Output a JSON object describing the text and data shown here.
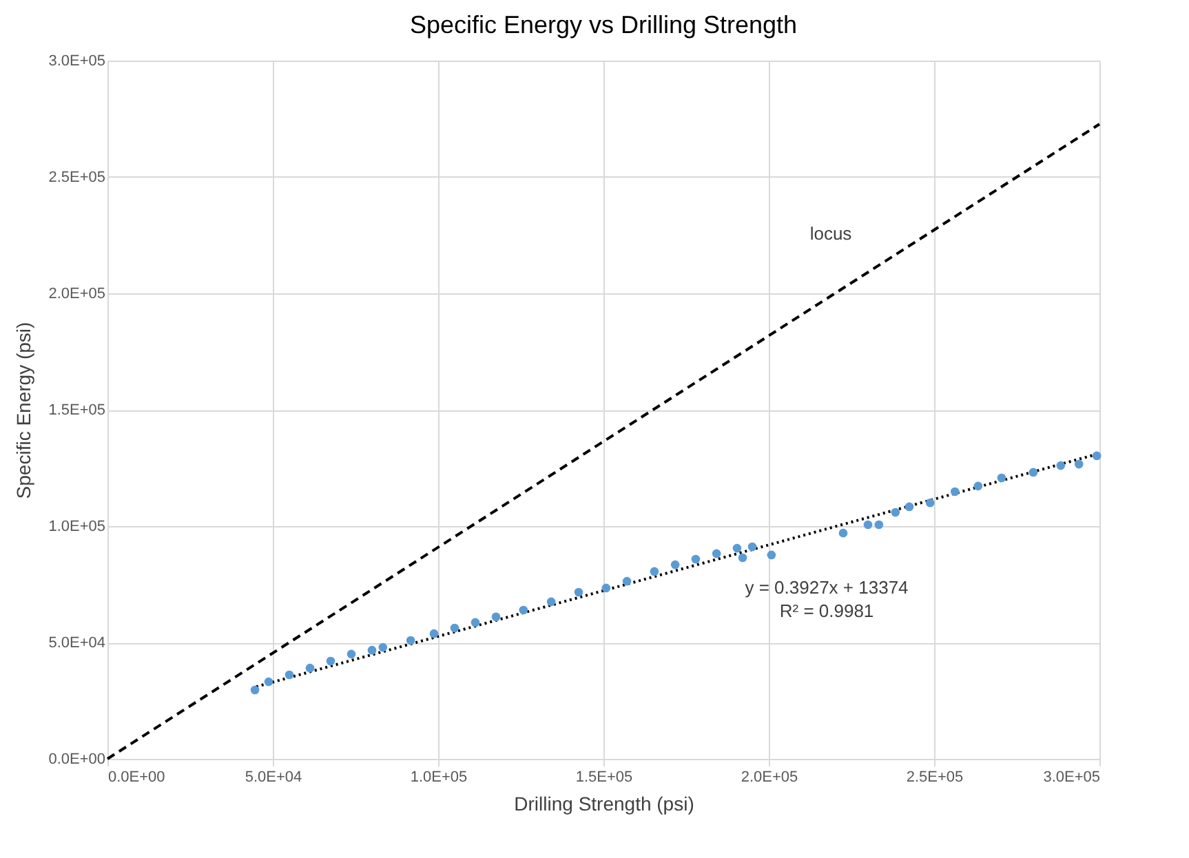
{
  "chart_data": {
    "type": "scatter",
    "title": "Specific Energy vs Drilling Strength",
    "xlabel": "Drilling Strength (psi)",
    "ylabel": "Specific Energy (psi)",
    "xlim": [
      0,
      300000
    ],
    "ylim": [
      0,
      300000
    ],
    "xticks": [
      {
        "value": 0,
        "label": "0.0E+00"
      },
      {
        "value": 50000,
        "label": "5.0E+04"
      },
      {
        "value": 100000,
        "label": "1.0E+05"
      },
      {
        "value": 150000,
        "label": "1.5E+05"
      },
      {
        "value": 200000,
        "label": "2.0E+05"
      },
      {
        "value": 250000,
        "label": "2.5E+05"
      },
      {
        "value": 300000,
        "label": "3.0E+05"
      }
    ],
    "yticks": [
      {
        "value": 0,
        "label": "0.0E+00"
      },
      {
        "value": 50000,
        "label": "5.0E+04"
      },
      {
        "value": 100000,
        "label": "1.0E+05"
      },
      {
        "value": 150000,
        "label": "1.5E+05"
      },
      {
        "value": 200000,
        "label": "2.0E+05"
      },
      {
        "value": 250000,
        "label": "2.5E+05"
      },
      {
        "value": 300000,
        "label": "3.0E+05"
      }
    ],
    "grid": true,
    "marker": "circle",
    "series": [
      {
        "type": "line",
        "marker": "none",
        "color": "#000000",
        "line_style": "dashed",
        "x": [
          0,
          300000
        ],
        "values": [
          0,
          272700
        ]
      },
      {
        "type": "line",
        "marker": "none",
        "color": "#000000",
        "line_style": "dotted",
        "x": [
          45000,
          300000
        ],
        "values": [
          31000,
          131200
        ]
      },
      {
        "color": "#5b9bd5",
        "x": [
          44600,
          48750,
          55000,
          61250,
          67500,
          73750,
          80000,
          83300,
          91700,
          98750,
          105000,
          111250,
          117500,
          125800,
          134200,
          142500,
          150800,
          157100,
          165400,
          171700,
          177900,
          184200,
          190400,
          192100,
          195000,
          200800,
          222500,
          230000,
          233300,
          238300,
          242500,
          248800,
          256300,
          263300,
          270400,
          280000,
          288300,
          293800,
          299200
        ],
        "values": [
          29600,
          33100,
          36100,
          39000,
          42000,
          45000,
          46700,
          47900,
          50900,
          53800,
          56200,
          58600,
          61000,
          63900,
          67500,
          71600,
          73400,
          76300,
          80500,
          83400,
          85800,
          88200,
          90500,
          86400,
          91100,
          87600,
          97000,
          100600,
          100600,
          105900,
          108300,
          110000,
          114800,
          117200,
          120700,
          123100,
          126000,
          126600,
          130200
        ]
      }
    ],
    "annotations": [
      "locus",
      "y = 0.3927x + 13374",
      "R² = 0.9981"
    ]
  }
}
